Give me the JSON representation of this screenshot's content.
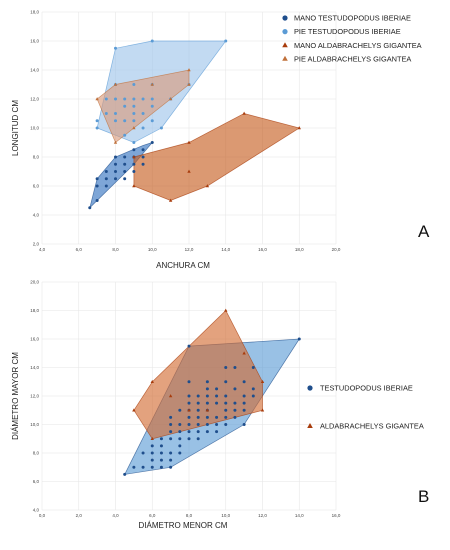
{
  "colors": {
    "dark_blue": "#1f4e8c",
    "light_blue": "#5b9bd5",
    "dark_red": "#a83c0c",
    "orange": "#c0703a",
    "fill_dark_blue": "#2e6fbf",
    "fill_light_blue": "#9dc3ea",
    "fill_orange": "#c55a1c",
    "fill_pink": "#d99a7a",
    "grid": "#e6e6e6"
  },
  "chart_data": [
    {
      "type": "scatter",
      "panel_label": "A",
      "xlabel": "ANCHURA CM",
      "ylabel": "LONGITUD CM",
      "xlim": [
        4,
        20
      ],
      "ylim": [
        2,
        18
      ],
      "xticks": [
        "4,0",
        "6,0",
        "8,0",
        "10,0",
        "12,0",
        "14,0",
        "16,0",
        "18,0",
        "20,0"
      ],
      "yticks": [
        "2,0",
        "4,0",
        "6,0",
        "8,0",
        "10,0",
        "12,0",
        "14,0",
        "16,0",
        "18,0"
      ],
      "legend_position": "top-right",
      "grid": true,
      "series": [
        {
          "name": "MANO TESTUDOPODUS IBERIAE",
          "marker": "circle",
          "color": "#1f4e8c",
          "fill": "#2e6fbf",
          "hull": [
            [
              6.6,
              4.5
            ],
            [
              7.0,
              5.0
            ],
            [
              9.0,
              7.5
            ],
            [
              10.0,
              9.0
            ],
            [
              9.5,
              8.8
            ],
            [
              8.0,
              8.0
            ],
            [
              7.0,
              6.5
            ]
          ],
          "points": [
            [
              6.6,
              4.5
            ],
            [
              7.0,
              5.0
            ],
            [
              7.0,
              6.0
            ],
            [
              7.0,
              6.5
            ],
            [
              7.5,
              6.0
            ],
            [
              7.5,
              6.5
            ],
            [
              7.5,
              7.0
            ],
            [
              8.0,
              6.5
            ],
            [
              8.0,
              7.0
            ],
            [
              8.0,
              7.5
            ],
            [
              8.0,
              8.0
            ],
            [
              8.5,
              6.5
            ],
            [
              8.5,
              7.0
            ],
            [
              8.5,
              7.5
            ],
            [
              8.5,
              8.0
            ],
            [
              9.0,
              7.0
            ],
            [
              9.0,
              7.5
            ],
            [
              9.0,
              8.0
            ],
            [
              9.0,
              8.5
            ],
            [
              9.5,
              7.5
            ],
            [
              9.5,
              8.0
            ],
            [
              9.5,
              8.5
            ],
            [
              10.0,
              9.0
            ]
          ]
        },
        {
          "name": "PIE TESTUDOPODUS IBERIAE",
          "marker": "circle",
          "color": "#5b9bd5",
          "fill": "#9dc3ea",
          "hull": [
            [
              8.0,
              15.5
            ],
            [
              10.0,
              16.0
            ],
            [
              14.0,
              16.0
            ],
            [
              10.5,
              10.0
            ],
            [
              9.0,
              9.0
            ],
            [
              7.0,
              10.0
            ]
          ],
          "points": [
            [
              7.0,
              10.0
            ],
            [
              7.0,
              10.5
            ],
            [
              7.5,
              11.0
            ],
            [
              7.5,
              12.0
            ],
            [
              8.0,
              10.5
            ],
            [
              8.0,
              11.0
            ],
            [
              8.0,
              12.0
            ],
            [
              8.0,
              13.0
            ],
            [
              8.0,
              15.5
            ],
            [
              8.5,
              9.5
            ],
            [
              8.5,
              10.5
            ],
            [
              8.5,
              11.5
            ],
            [
              8.5,
              12.0
            ],
            [
              9.0,
              9.0
            ],
            [
              9.0,
              10.5
            ],
            [
              9.0,
              11.0
            ],
            [
              9.0,
              11.5
            ],
            [
              9.0,
              12.0
            ],
            [
              9.0,
              13.0
            ],
            [
              9.5,
              10.0
            ],
            [
              9.5,
              11.0
            ],
            [
              9.5,
              12.0
            ],
            [
              10.0,
              10.5
            ],
            [
              10.0,
              11.5
            ],
            [
              10.0,
              12.0
            ],
            [
              10.0,
              13.0
            ],
            [
              10.0,
              16.0
            ],
            [
              10.5,
              10.0
            ],
            [
              11.0,
              12.0
            ],
            [
              12.0,
              13.0
            ],
            [
              14.0,
              16.0
            ]
          ]
        },
        {
          "name": "MANO ALDABRACHELYS GIGANTEA",
          "marker": "triangle",
          "color": "#a83c0c",
          "fill": "#c55a1c",
          "hull": [
            [
              9.0,
              8.0
            ],
            [
              12.0,
              9.0
            ],
            [
              15.0,
              11.0
            ],
            [
              18.0,
              10.0
            ],
            [
              13.0,
              6.0
            ],
            [
              11.0,
              5.0
            ],
            [
              9.0,
              6.0
            ]
          ],
          "points": [
            [
              9.0,
              6.0
            ],
            [
              9.0,
              8.0
            ],
            [
              11.0,
              5.0
            ],
            [
              12.0,
              7.0
            ],
            [
              12.0,
              9.0
            ],
            [
              13.0,
              6.0
            ],
            [
              15.0,
              11.0
            ],
            [
              18.0,
              10.0
            ]
          ]
        },
        {
          "name": "PIE ALDABRACHELYS GIGANTEA",
          "marker": "triangle",
          "color": "#c0703a",
          "fill": "#d99a7a",
          "hull": [
            [
              7.0,
              12.0
            ],
            [
              8.0,
              13.0
            ],
            [
              12.0,
              14.0
            ],
            [
              12.0,
              13.0
            ],
            [
              9.0,
              10.0
            ],
            [
              8.0,
              9.0
            ]
          ],
          "points": [
            [
              7.0,
              12.0
            ],
            [
              8.0,
              13.0
            ],
            [
              8.0,
              9.0
            ],
            [
              9.0,
              10.0
            ],
            [
              10.0,
              13.0
            ],
            [
              11.0,
              12.0
            ],
            [
              12.0,
              13.0
            ],
            [
              12.0,
              14.0
            ]
          ]
        }
      ]
    },
    {
      "type": "scatter",
      "panel_label": "B",
      "xlabel": "DIÁMETRO MENOR CM",
      "ylabel": "DIÁMETRO MAYOR CM",
      "xlim": [
        0,
        16
      ],
      "ylim": [
        4,
        20
      ],
      "xticks": [
        "0,0",
        "2,0",
        "4,0",
        "6,0",
        "8,0",
        "10,0",
        "12,0",
        "14,0",
        "16,0"
      ],
      "yticks": [
        "4,0",
        "6,0",
        "8,0",
        "10,0",
        "12,0",
        "14,0",
        "16,0",
        "18,0",
        "20,0"
      ],
      "legend_position": "right",
      "grid": true,
      "series": [
        {
          "name": "TESTUDOPODUS IBERIAE",
          "marker": "circle",
          "color": "#1f4e8c",
          "fill": "#5b9bd5",
          "hull": [
            [
              4.5,
              6.5
            ],
            [
              8.0,
              15.5
            ],
            [
              14.0,
              16.0
            ],
            [
              11.0,
              10.0
            ],
            [
              7.0,
              7.0
            ]
          ],
          "points": [
            [
              4.5,
              6.5
            ],
            [
              5.0,
              7.0
            ],
            [
              5.5,
              7.0
            ],
            [
              5.5,
              8.0
            ],
            [
              6.0,
              7.0
            ],
            [
              6.0,
              7.5
            ],
            [
              6.0,
              8.0
            ],
            [
              6.0,
              8.5
            ],
            [
              6.5,
              7.0
            ],
            [
              6.5,
              7.5
            ],
            [
              6.5,
              8.0
            ],
            [
              6.5,
              8.5
            ],
            [
              6.5,
              9.0
            ],
            [
              7.0,
              7.0
            ],
            [
              7.0,
              7.5
            ],
            [
              7.0,
              8.0
            ],
            [
              7.0,
              9.0
            ],
            [
              7.0,
              9.5
            ],
            [
              7.0,
              10.0
            ],
            [
              7.0,
              10.5
            ],
            [
              7.5,
              8.0
            ],
            [
              7.5,
              8.5
            ],
            [
              7.5,
              9.0
            ],
            [
              7.5,
              9.5
            ],
            [
              7.5,
              10.0
            ],
            [
              7.5,
              11.0
            ],
            [
              8.0,
              9.0
            ],
            [
              8.0,
              9.5
            ],
            [
              8.0,
              10.0
            ],
            [
              8.0,
              10.5
            ],
            [
              8.0,
              11.0
            ],
            [
              8.0,
              11.5
            ],
            [
              8.0,
              12.0
            ],
            [
              8.0,
              13.0
            ],
            [
              8.0,
              15.5
            ],
            [
              8.5,
              9.0
            ],
            [
              8.5,
              9.5
            ],
            [
              8.5,
              10.0
            ],
            [
              8.5,
              10.5
            ],
            [
              8.5,
              11.0
            ],
            [
              8.5,
              11.5
            ],
            [
              8.5,
              12.0
            ],
            [
              9.0,
              9.5
            ],
            [
              9.0,
              10.0
            ],
            [
              9.0,
              10.5
            ],
            [
              9.0,
              11.0
            ],
            [
              9.0,
              11.5
            ],
            [
              9.0,
              12.0
            ],
            [
              9.0,
              12.5
            ],
            [
              9.0,
              13.0
            ],
            [
              9.5,
              9.5
            ],
            [
              9.5,
              10.0
            ],
            [
              9.5,
              10.5
            ],
            [
              9.5,
              11.5
            ],
            [
              9.5,
              12.0
            ],
            [
              9.5,
              12.5
            ],
            [
              10.0,
              10.0
            ],
            [
              10.0,
              10.5
            ],
            [
              10.0,
              11.0
            ],
            [
              10.0,
              11.5
            ],
            [
              10.0,
              12.0
            ],
            [
              10.0,
              13.0
            ],
            [
              10.0,
              14.0
            ],
            [
              10.5,
              10.5
            ],
            [
              10.5,
              11.0
            ],
            [
              10.5,
              11.5
            ],
            [
              10.5,
              12.5
            ],
            [
              10.5,
              14.0
            ],
            [
              11.0,
              10.0
            ],
            [
              11.0,
              11.0
            ],
            [
              11.0,
              11.5
            ],
            [
              11.0,
              12.0
            ],
            [
              11.0,
              13.0
            ],
            [
              11.5,
              12.0
            ],
            [
              11.5,
              12.5
            ],
            [
              11.5,
              14.0
            ],
            [
              14.0,
              16.0
            ]
          ]
        },
        {
          "name": "ALDABRACHELYS GIGANTEA",
          "marker": "triangle",
          "color": "#a83c0c",
          "fill": "#d2692f",
          "hull": [
            [
              5.0,
              11.0
            ],
            [
              6.0,
              13.0
            ],
            [
              10.0,
              18.0
            ],
            [
              12.0,
              13.0
            ],
            [
              12.0,
              11.0
            ],
            [
              6.0,
              9.0
            ]
          ],
          "points": [
            [
              5.0,
              11.0
            ],
            [
              6.0,
              9.0
            ],
            [
              6.0,
              13.0
            ],
            [
              7.0,
              12.0
            ],
            [
              8.0,
              11.0
            ],
            [
              9.0,
              11.0
            ],
            [
              10.0,
              18.0
            ],
            [
              11.0,
              15.0
            ],
            [
              12.0,
              11.0
            ],
            [
              12.0,
              13.0
            ]
          ]
        }
      ]
    }
  ]
}
